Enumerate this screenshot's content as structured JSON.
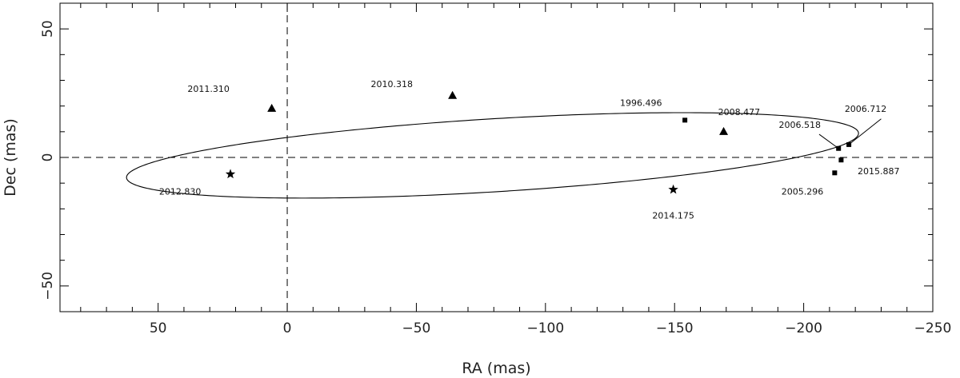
{
  "chart_data": {
    "type": "scatter",
    "xlabel": "RA (mas)",
    "ylabel": "Dec (mas)",
    "xlim": [
      88,
      -250
    ],
    "ylim": [
      -60,
      60
    ],
    "x_reversed": true,
    "xticks": [
      50,
      0,
      -50,
      -100,
      -150,
      -200,
      -250
    ],
    "yticks": [
      50,
      0,
      -50
    ],
    "xtick_labels": [
      "50",
      "0",
      "−50",
      "−100",
      "−150",
      "−200",
      "−250"
    ],
    "ytick_labels": [
      "50",
      "0",
      "−50"
    ],
    "grid": false,
    "reference_lines": [
      {
        "axis": "x",
        "value": 0,
        "style": "dashed"
      },
      {
        "axis": "y",
        "value": 0,
        "style": "dashed"
      }
    ],
    "orbit": {
      "center_ra": -79.5,
      "center_dec": 0.8,
      "semi_axis_ra": 142,
      "semi_axis_dec": 14.2,
      "rotation_deg": -3.5,
      "style": "solid"
    },
    "series": [
      {
        "marker": "square",
        "points": [
          {
            "x": -154,
            "y": 14.5
          },
          {
            "x": -213.5,
            "y": 3.5
          },
          {
            "x": -217.5,
            "y": 5
          },
          {
            "x": -212,
            "y": -6
          },
          {
            "x": -214.5,
            "y": -1
          }
        ]
      },
      {
        "marker": "triangle",
        "points": [
          {
            "x": 6,
            "y": 19
          },
          {
            "x": -64,
            "y": 24
          },
          {
            "x": -169,
            "y": 10
          }
        ]
      },
      {
        "marker": "star",
        "points": [
          {
            "x": 22,
            "y": -6.5
          },
          {
            "x": -149.5,
            "y": -12.5
          }
        ]
      }
    ],
    "annotations": [
      {
        "text": "2011.310",
        "x": 30.5,
        "y": 25.5
      },
      {
        "text": "2010.318",
        "x": -40.5,
        "y": 27.3
      },
      {
        "text": "1996.496",
        "x": -137,
        "y": 20
      },
      {
        "text": "2008.477",
        "x": -175,
        "y": 16.5
      },
      {
        "text": "2006.518",
        "x": -198.5,
        "y": 11.5
      },
      {
        "text": "2006.712",
        "x": -224,
        "y": 17.7
      },
      {
        "text": "2015.887",
        "x": -229,
        "y": -6.5
      },
      {
        "text": "2005.296",
        "x": -199.5,
        "y": -14.5
      },
      {
        "text": "2012.830",
        "x": 41.5,
        "y": -14.5
      },
      {
        "text": "2014.175",
        "x": -149.5,
        "y": -23.8
      }
    ],
    "leader_lines": [
      {
        "from": {
          "x": -206,
          "y": 9
        },
        "to": {
          "x": -213.5,
          "y": 3.5
        }
      },
      {
        "from": {
          "x": -230,
          "y": 15
        },
        "to": {
          "x": -217.5,
          "y": 5
        }
      }
    ]
  }
}
